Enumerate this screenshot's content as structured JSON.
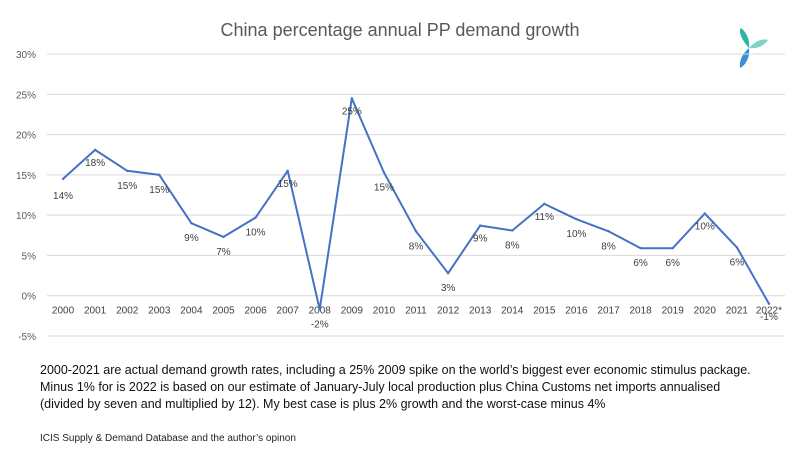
{
  "chart_data": {
    "type": "line",
    "title": "China percentage annual PP demand growth",
    "categories": [
      "2000",
      "2001",
      "2002",
      "2003",
      "2004",
      "2005",
      "2006",
      "2007",
      "2008",
      "2009",
      "2010",
      "2011",
      "2012",
      "2013",
      "2014",
      "2015",
      "2016",
      "2017",
      "2018",
      "2019",
      "2020",
      "2021",
      "2022*"
    ],
    "values": [
      14.5,
      18.1,
      15.5,
      15.0,
      9.0,
      7.3,
      9.7,
      15.5,
      -1.7,
      24.5,
      15.3,
      8.0,
      2.8,
      8.7,
      8.1,
      11.4,
      9.5,
      8.0,
      5.9,
      5.9,
      10.2,
      6.0,
      -1.0
    ],
    "data_labels": [
      "14%",
      "18%",
      "15%",
      "15%",
      "9%",
      "7%",
      "10%",
      "15%",
      "-2%",
      "25%",
      "15%",
      "8%",
      "3%",
      "9%",
      "8%",
      "11%",
      "10%",
      "8%",
      "6%",
      "6%",
      "10%",
      "6%",
      "-1%"
    ],
    "ylim": [
      -5,
      30
    ],
    "y_ticks": [
      -5,
      0,
      5,
      10,
      15,
      20,
      25,
      30
    ],
    "y_tick_labels": [
      "-5%",
      "0%",
      "5%",
      "10%",
      "15%",
      "20%",
      "25%",
      "30%"
    ],
    "grid": true,
    "line_color": "#4472C4",
    "grid_color": "#d9d9d9"
  },
  "footnote": {
    "line1": "2000-2021 are actual demand growth rates, including a 25% 2009 spike on the world’s biggest ever economic stimulus package.",
    "line2": "Minus 1% for is 2022 is based on our estimate of January-July local production plus China Customs net imports annualised",
    "line3": "(divided by seven and multiplied by 12). My best case is plus 2% growth and the worst-case minus 4%"
  },
  "source": "ICIS Supply & Demand Database and the author’s opinon",
  "logo": {
    "icon": "icis-logo-icon",
    "colors": [
      "#2bb3a3",
      "#3a8fd6",
      "#7fd3c8"
    ]
  }
}
